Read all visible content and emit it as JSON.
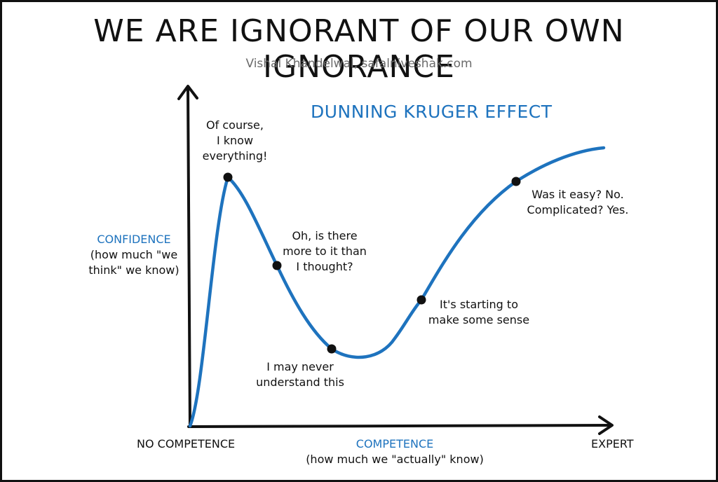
{
  "title": "WE ARE IGNORANT OF OUR OWN IGNORANCE",
  "subtitle": "Vishal Khandelwal, safalniveshak.com",
  "chart_data": {
    "type": "line",
    "title": "DUNNING KRUGER EFFECT",
    "y_axis": {
      "label": "CONFIDENCE",
      "sublabel_lines": [
        "(how much \"we",
        "think\" we know)"
      ]
    },
    "x_axis": {
      "label": "COMPETENCE",
      "sublabel": "(how much we \"actually\" know)",
      "left_end": "NO COMPETENCE",
      "right_end": "EXPERT"
    },
    "points": [
      {
        "lines": [
          "Of course,",
          "I know",
          "everything!"
        ]
      },
      {
        "lines": [
          "Oh, is there",
          "more to it than",
          "I thought?"
        ]
      },
      {
        "lines": [
          "I may never",
          "understand this"
        ]
      },
      {
        "lines": [
          "It's starting to",
          "make some sense"
        ]
      },
      {
        "lines": [
          "Was it easy? No.",
          "Complicated? Yes."
        ]
      }
    ],
    "colors": {
      "curve": "#1e73be",
      "axis": "#111111",
      "point": "#111111",
      "accent": "#1e73be"
    }
  }
}
